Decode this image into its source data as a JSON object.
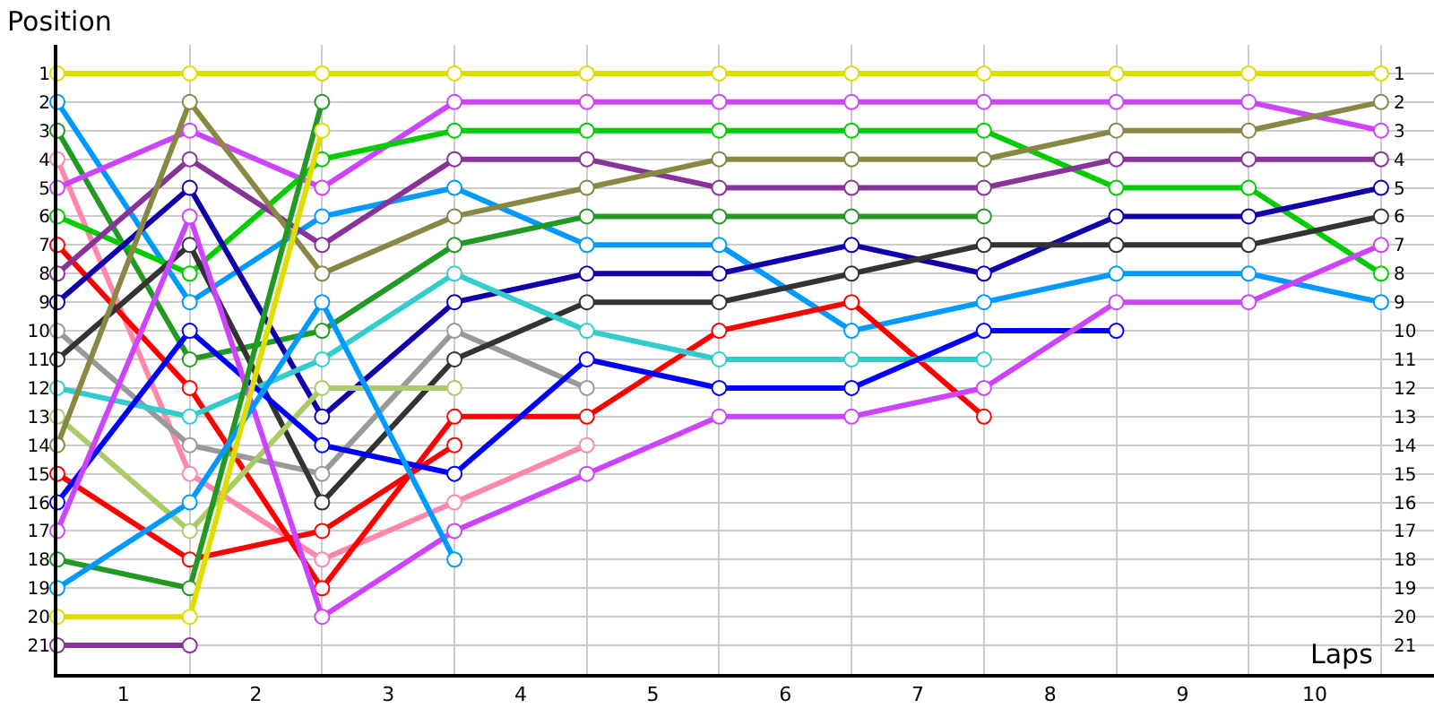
{
  "chart_data": {
    "type": "line",
    "xlabel": "Laps",
    "ylabel": "Position",
    "x": [
      0,
      1,
      2,
      3,
      4,
      5,
      6,
      7,
      8,
      9,
      10
    ],
    "xlim": [
      0,
      10.4
    ],
    "xticks": [
      {
        "value": 0.5,
        "label": "1"
      },
      {
        "value": 1.5,
        "label": "2"
      },
      {
        "value": 2.5,
        "label": "3"
      },
      {
        "value": 3.5,
        "label": "4"
      },
      {
        "value": 4.5,
        "label": "5"
      },
      {
        "value": 5.5,
        "label": "6"
      },
      {
        "value": 6.5,
        "label": "7"
      },
      {
        "value": 7.5,
        "label": "8"
      },
      {
        "value": 8.5,
        "label": "9"
      },
      {
        "value": 9.5,
        "label": "10"
      }
    ],
    "ylim": [
      22,
      0
    ],
    "yticks": [
      1,
      2,
      3,
      4,
      5,
      6,
      7,
      8,
      9,
      10,
      11,
      12,
      13,
      14,
      15,
      16,
      17,
      18,
      19,
      20,
      21
    ],
    "y2lim": [
      22,
      0
    ],
    "y2ticks": [
      1,
      2,
      3,
      4,
      5,
      6,
      7,
      8,
      9,
      10,
      11,
      12,
      13,
      14,
      15,
      16,
      17,
      18,
      19,
      20,
      21
    ],
    "grid": true,
    "marker": "circle",
    "line_style": "solid",
    "series": [
      {
        "color": "#dddd00",
        "values": [
          1,
          1,
          1,
          1,
          1,
          1,
          1,
          1,
          1,
          1,
          1
        ]
      },
      {
        "color": "#0099ff",
        "values": [
          2,
          9,
          6,
          5,
          7,
          7,
          10,
          9,
          8,
          8,
          9
        ]
      },
      {
        "color": "#229922",
        "values": [
          3,
          11,
          10,
          7,
          6,
          6,
          6,
          6,
          null,
          null,
          null
        ]
      },
      {
        "color": "#ff88aa",
        "values": [
          4,
          15,
          18,
          16,
          14,
          null,
          null,
          null,
          null,
          null,
          null
        ]
      },
      {
        "color": "#cc44ff",
        "values": [
          5,
          3,
          5,
          2,
          2,
          2,
          2,
          2,
          2,
          2,
          3
        ]
      },
      {
        "color": "#00cc00",
        "values": [
          6,
          8,
          4,
          3,
          3,
          3,
          3,
          3,
          5,
          5,
          8
        ]
      },
      {
        "color": "#ff0000",
        "values": [
          7,
          12,
          19,
          13,
          13,
          10,
          9,
          13,
          null,
          null,
          null
        ]
      },
      {
        "color": "#883399",
        "values": [
          8,
          4,
          7,
          4,
          4,
          5,
          5,
          5,
          4,
          4,
          4
        ]
      },
      {
        "color": "#1100aa",
        "values": [
          9,
          5,
          13,
          9,
          8,
          8,
          7,
          8,
          6,
          6,
          5
        ]
      },
      {
        "color": "#999999",
        "values": [
          10,
          14,
          15,
          10,
          12,
          null,
          null,
          null,
          null,
          null,
          null
        ]
      },
      {
        "color": "#333333",
        "values": [
          11,
          7,
          16,
          11,
          9,
          9,
          8,
          7,
          7,
          7,
          6
        ]
      },
      {
        "color": "#33cccc",
        "values": [
          12,
          13,
          11,
          8,
          10,
          11,
          11,
          11,
          null,
          null,
          null
        ]
      },
      {
        "color": "#aacc66",
        "values": [
          13,
          17,
          12,
          12,
          null,
          null,
          null,
          null,
          null,
          null,
          null
        ]
      },
      {
        "color": "#888844",
        "values": [
          14,
          2,
          8,
          6,
          5,
          4,
          4,
          4,
          3,
          3,
          2
        ]
      },
      {
        "color": "#ff0000",
        "values": [
          15,
          18,
          17,
          14,
          null,
          null,
          null,
          null,
          null,
          null,
          null
        ]
      },
      {
        "color": "#0000ff",
        "values": [
          16,
          10,
          14,
          15,
          11,
          12,
          12,
          10,
          10,
          null,
          null
        ]
      },
      {
        "color": "#cc44ff",
        "values": [
          17,
          6,
          20,
          17,
          15,
          13,
          13,
          12,
          9,
          9,
          7
        ]
      },
      {
        "color": "#229922",
        "values": [
          18,
          19,
          2,
          null,
          null,
          null,
          null,
          null,
          null,
          null,
          null
        ]
      },
      {
        "color": "#0099ff",
        "values": [
          19,
          16,
          9,
          18,
          null,
          null,
          null,
          null,
          null,
          null,
          null
        ]
      },
      {
        "color": "#dddd00",
        "values": [
          20,
          20,
          3,
          null,
          null,
          null,
          null,
          null,
          null,
          null,
          null
        ]
      },
      {
        "color": "#883399",
        "values": [
          21,
          21,
          null,
          null,
          null,
          null,
          null,
          null,
          null,
          null,
          null
        ]
      }
    ]
  }
}
